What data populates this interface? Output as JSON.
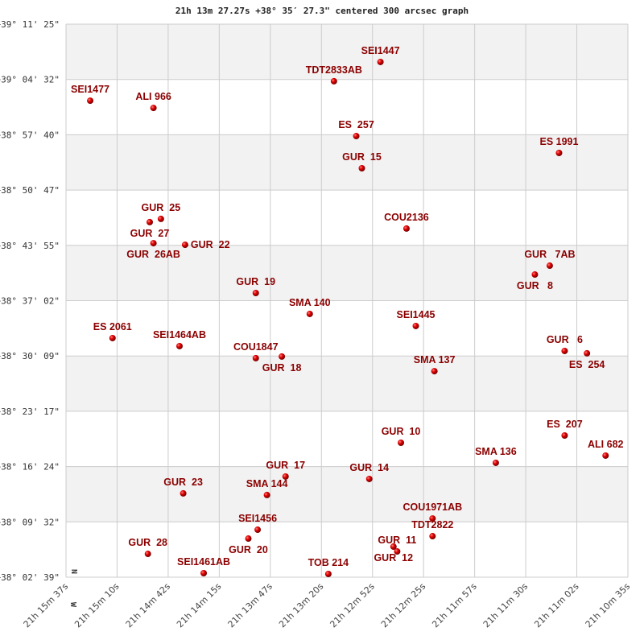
{
  "chart_data": {
    "type": "scatter",
    "title": "21h 13m 27.27s +38° 35′ 27.3\" centered 300 arcsec graph",
    "x_ticks": [
      "21h 15m 37s",
      "21h 15m 10s",
      "21h 14m 42s",
      "21h 14m 15s",
      "21h 13m 47s",
      "21h 13m 20s",
      "21h 12m 52s",
      "21h 12m 25s",
      "21h 11m 57s",
      "21h 11m 30s",
      "21h 11m 02s",
      "21h 10m 35s"
    ],
    "y_ticks": [
      "+39° 11' 25\"",
      "+39° 04' 32\"",
      "+38° 57' 40\"",
      "+38° 50' 47\"",
      "+38° 43' 55\"",
      "+38° 37' 02\"",
      "+38° 30' 09\"",
      "+38° 23' 17\"",
      "+38° 16' 24\"",
      "+38° 09' 32\"",
      "+38° 02' 39\""
    ],
    "xlim": [
      "21h 15m 37s",
      "21h 10m 35s"
    ],
    "ylim": [
      "+38° 02' 39\"",
      "+39° 11' 25\""
    ],
    "grid": true,
    "compass": [
      "N",
      "W"
    ],
    "colors": {
      "marker": "#cc0000",
      "label": "#8b0000",
      "band": "#f2f2f2",
      "grid": "#cccccc"
    },
    "points": [
      {
        "name": "SEI1447",
        "ra": "21h 12m 48s",
        "dec": "+39° 06' 43\""
      },
      {
        "name": "TDT2833AB",
        "ra": "21h 13m 13s",
        "dec": "+39° 04' 19\""
      },
      {
        "name": "SEI1477",
        "ra": "21h 15m 24s",
        "dec": "+39° 01' 54\""
      },
      {
        "name": "ALI 966",
        "ra": "21h 14m 50s",
        "dec": "+39° 01' 00\""
      },
      {
        "name": "ES  257",
        "ra": "21h 13m 01s",
        "dec": "+38° 57' 30\""
      },
      {
        "name": "ES 1991",
        "ra": "21h 11m 12s",
        "dec": "+38° 55' 24\""
      },
      {
        "name": "GUR  15",
        "ra": "21h 12m 58s",
        "dec": "+38° 53' 30\""
      },
      {
        "name": "GUR  25",
        "ra": "21h 14m 46s",
        "dec": "+38° 47' 12\""
      },
      {
        "name": "GUR  27",
        "ra": "21h 14m 52s",
        "dec": "+38° 46' 48\""
      },
      {
        "name": "GUR  26AB",
        "ra": "21h 14m 50s",
        "dec": "+38° 44' 11\""
      },
      {
        "name": "GUR  22",
        "ra": "21h 14m 33s",
        "dec": "+38° 43' 59\""
      },
      {
        "name": "COU2136",
        "ra": "21h 12m 34s",
        "dec": "+38° 46' 00\""
      },
      {
        "name": "GUR   7AB",
        "ra": "21h 11m 17s",
        "dec": "+38° 41' 23\""
      },
      {
        "name": "GUR   8",
        "ra": "21h 11m 25s",
        "dec": "+38° 40' 17\""
      },
      {
        "name": "GUR  19",
        "ra": "21h 13m 55s",
        "dec": "+38° 37' 59\""
      },
      {
        "name": "SMA 140",
        "ra": "21h 13m 26s",
        "dec": "+38° 35' 23\""
      },
      {
        "name": "SEI1445",
        "ra": "21h 12m 29s",
        "dec": "+38° 33' 53\""
      },
      {
        "name": "ES 2061",
        "ra": "21h 15m 12s",
        "dec": "+38° 32' 23\""
      },
      {
        "name": "SEI1464AB",
        "ra": "21h 14m 36s",
        "dec": "+38° 31' 23\""
      },
      {
        "name": "COU1847",
        "ra": "21h 13m 55s",
        "dec": "+38° 29' 53\""
      },
      {
        "name": "GUR  18",
        "ra": "21h 13m 41s",
        "dec": "+38° 30' 05\""
      },
      {
        "name": "GUR   6",
        "ra": "21h 11m 09s",
        "dec": "+38° 30' 47\""
      },
      {
        "name": "ES  254",
        "ra": "21h 10m 57s",
        "dec": "+38° 30' 29\""
      },
      {
        "name": "SMA 137",
        "ra": "21h 12m 19s",
        "dec": "+38° 28' 16\""
      },
      {
        "name": "GUR  10",
        "ra": "21h 12m 37s",
        "dec": "+38° 19' 22\""
      },
      {
        "name": "ES  207",
        "ra": "21h 11m 09s",
        "dec": "+38° 20' 16\""
      },
      {
        "name": "ALI 682",
        "ra": "21h 10m 47s",
        "dec": "+38° 17' 46\""
      },
      {
        "name": "SMA 136",
        "ra": "21h 11m 46s",
        "dec": "+38° 16' 52\""
      },
      {
        "name": "GUR  17",
        "ra": "21h 13m 39s",
        "dec": "+38° 15' 10\""
      },
      {
        "name": "GUR  14",
        "ra": "21h 12m 54s",
        "dec": "+38° 14' 52\""
      },
      {
        "name": "GUR  23",
        "ra": "21h 14m 34s",
        "dec": "+38° 13' 04\""
      },
      {
        "name": "SMA 144",
        "ra": "21h 13m 49s",
        "dec": "+38° 12' 52\""
      },
      {
        "name": "COU1971AB",
        "ra": "21h 12m 20s",
        "dec": "+38° 09' 57\""
      },
      {
        "name": "SEI1456",
        "ra": "21h 13m 54s",
        "dec": "+38° 08' 33\""
      },
      {
        "name": "GUR  20",
        "ra": "21h 13m 59s",
        "dec": "+38° 07' 27\""
      },
      {
        "name": "TDT2822",
        "ra": "21h 12m 20s",
        "dec": "+38° 07' 45\""
      },
      {
        "name": "GUR  12",
        "ra": "21h 12m 41s",
        "dec": "+38° 06' 27\""
      },
      {
        "name": "GUR  11",
        "ra": "21h 12m 39s",
        "dec": "+38° 05' 51\""
      },
      {
        "name": "GUR  28",
        "ra": "21h 14m 53s",
        "dec": "+38° 05' 33\""
      },
      {
        "name": "SEI1461AB",
        "ra": "21h 14m 23s",
        "dec": "+38° 03' 09\""
      },
      {
        "name": "TOB 214",
        "ra": "21h 13m 16s",
        "dec": "+38° 03' 03\""
      }
    ]
  }
}
